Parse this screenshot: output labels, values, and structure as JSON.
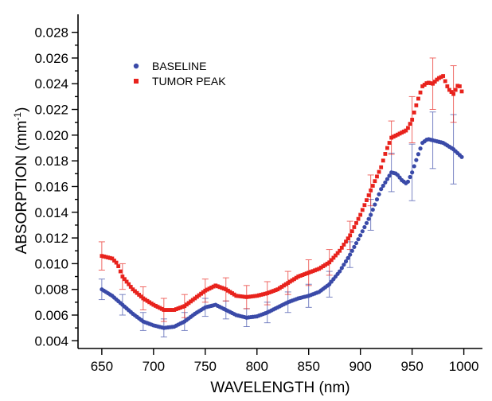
{
  "chart_data": {
    "type": "scatter",
    "xlabel": "WAVELENGTH (nm)",
    "ylabel_main": "ABSORPTION (mm",
    "ylabel_sup": "-1",
    "ylabel_end": ")",
    "xlim": [
      627,
      1018
    ],
    "ylim": [
      0.0034,
      0.0294
    ],
    "x_ticks": [
      650,
      700,
      750,
      800,
      850,
      900,
      950,
      1000
    ],
    "x_tick_labels": [
      "650",
      "700",
      "750",
      "800",
      "850",
      "900",
      "950",
      "1000"
    ],
    "y_ticks": [
      0.004,
      0.006,
      0.008,
      0.01,
      0.012,
      0.014,
      0.016,
      0.018,
      0.02,
      0.022,
      0.024,
      0.026,
      0.028
    ],
    "y_tick_labels": [
      "0.004",
      "0.006",
      "0.008",
      "0.010",
      "0.012",
      "0.014",
      "0.016",
      "0.018",
      "0.020",
      "0.022",
      "0.024",
      "0.026",
      "0.028"
    ],
    "grid": false,
    "legend_position": "top-left",
    "series": [
      {
        "name": "BASELINE",
        "marker": "circle",
        "color": "#3a4aa8",
        "x": [
          650,
          660,
          670,
          680,
          690,
          700,
          710,
          720,
          730,
          740,
          750,
          760,
          770,
          780,
          790,
          800,
          810,
          820,
          830,
          840,
          850,
          860,
          870,
          880,
          890,
          900,
          910,
          920,
          930,
          935,
          940,
          945,
          950,
          955,
          960,
          965,
          970,
          980,
          990,
          998
        ],
        "y": [
          0.008,
          0.0075,
          0.0068,
          0.0061,
          0.0055,
          0.0052,
          0.005,
          0.0051,
          0.0055,
          0.0061,
          0.0066,
          0.0068,
          0.0064,
          0.006,
          0.0058,
          0.0059,
          0.0062,
          0.0066,
          0.007,
          0.0073,
          0.0075,
          0.0078,
          0.0084,
          0.0094,
          0.0107,
          0.0122,
          0.0138,
          0.0158,
          0.0171,
          0.017,
          0.0165,
          0.0162,
          0.0171,
          0.0183,
          0.0194,
          0.0197,
          0.0196,
          0.0194,
          0.0189,
          0.0183
        ],
        "error_x": [
          650,
          670,
          690,
          710,
          730,
          750,
          770,
          790,
          810,
          830,
          850,
          870,
          890,
          910,
          930,
          950,
          970,
          990
        ],
        "error_y": [
          0.0008,
          0.0008,
          0.0007,
          0.0007,
          0.0007,
          0.0007,
          0.0007,
          0.0007,
          0.0008,
          0.0008,
          0.0009,
          0.001,
          0.001,
          0.0012,
          0.0015,
          0.0022,
          0.0022,
          0.0027
        ]
      },
      {
        "name": "TUMOR PEAK",
        "marker": "square",
        "color": "#e8221c",
        "x": [
          650,
          655,
          660,
          665,
          670,
          680,
          690,
          700,
          710,
          720,
          730,
          740,
          750,
          760,
          770,
          780,
          790,
          800,
          810,
          820,
          830,
          840,
          850,
          860,
          870,
          880,
          890,
          900,
          910,
          920,
          925,
          930,
          935,
          940,
          945,
          950,
          955,
          960,
          965,
          970,
          975,
          980,
          985,
          990,
          995,
          998
        ],
        "y": [
          0.0106,
          0.0105,
          0.0104,
          0.01,
          0.009,
          0.008,
          0.0073,
          0.0068,
          0.0064,
          0.0064,
          0.0067,
          0.0073,
          0.0079,
          0.0083,
          0.008,
          0.0075,
          0.0074,
          0.0075,
          0.0077,
          0.008,
          0.0085,
          0.009,
          0.0093,
          0.0096,
          0.0101,
          0.011,
          0.0122,
          0.0138,
          0.0157,
          0.0175,
          0.0188,
          0.0198,
          0.02,
          0.0202,
          0.0204,
          0.0212,
          0.0226,
          0.0238,
          0.0241,
          0.024,
          0.0244,
          0.0246,
          0.0236,
          0.0232,
          0.024,
          0.0234
        ],
        "error_x": [
          650,
          670,
          690,
          710,
          730,
          750,
          770,
          790,
          810,
          830,
          850,
          870,
          890,
          910,
          930,
          950,
          970,
          990
        ],
        "error_y": [
          0.0011,
          0.001,
          0.0009,
          0.0009,
          0.0009,
          0.0009,
          0.0009,
          0.0009,
          0.0009,
          0.0009,
          0.001,
          0.001,
          0.0011,
          0.0012,
          0.0013,
          0.0018,
          0.002,
          0.0022
        ]
      }
    ]
  }
}
